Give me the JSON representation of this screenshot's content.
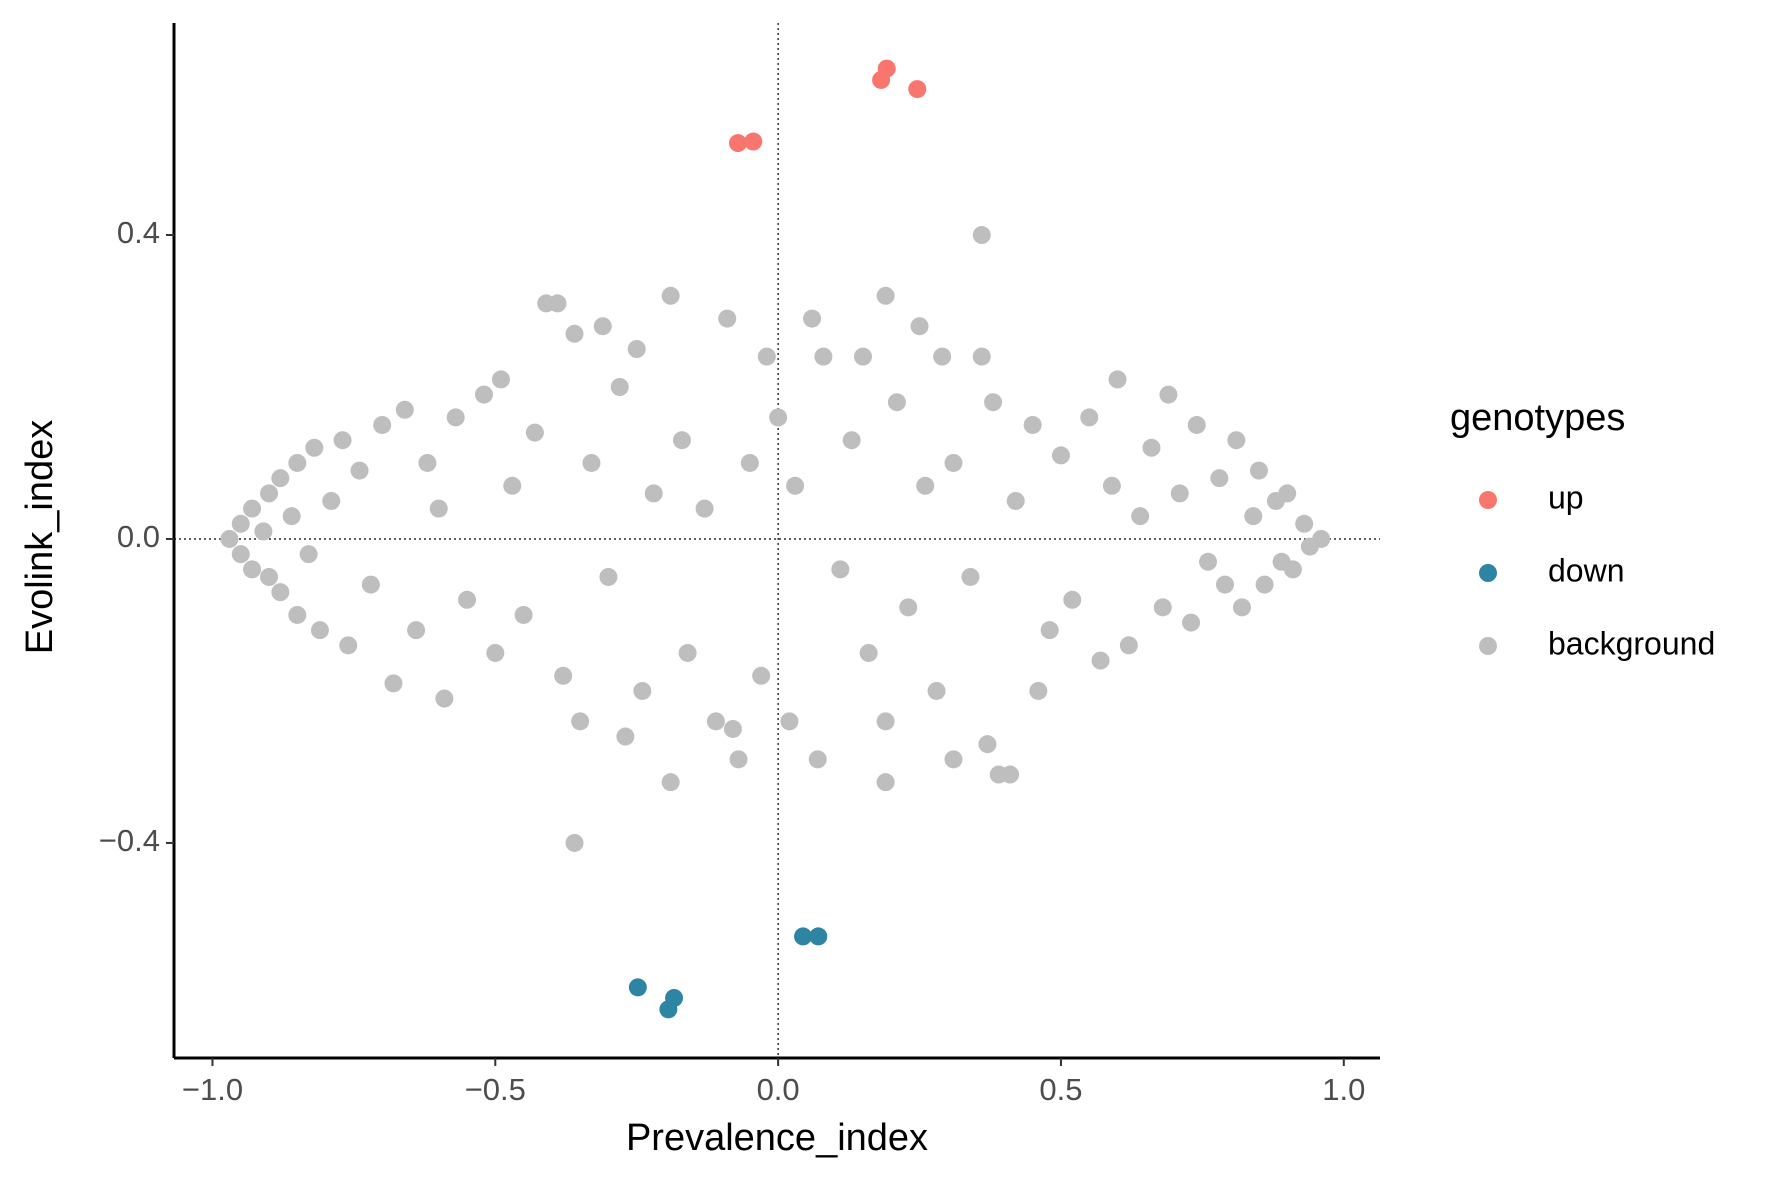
{
  "chart_data": {
    "type": "scatter",
    "x_label": "Prevalence_index",
    "y_label": "Evolink_index",
    "legend_title": "genotypes",
    "legend": "right",
    "xlim": [
      -1.068,
      1.064
    ],
    "ylim": [
      -0.683,
      0.679
    ],
    "xticks": [
      {
        "value": -1,
        "label": "−1.0"
      },
      {
        "value": -0.5,
        "label": "−0.5"
      },
      {
        "value": 0,
        "label": "0.0"
      },
      {
        "value": 0.5,
        "label": "0.5"
      },
      {
        "value": 1,
        "label": "1.0"
      }
    ],
    "yticks": [
      {
        "value": -0.4,
        "label": "−0.4"
      },
      {
        "value": 0,
        "label": "0.0"
      },
      {
        "value": 0.4,
        "label": "0.4"
      }
    ],
    "hline": 0,
    "vline": 0,
    "grid": false,
    "series": [
      {
        "name": "up",
        "color": "#F8766D",
        "x": [
          0.192,
          0.182,
          0.246,
          -0.071,
          -0.044
        ],
        "y": [
          0.619,
          0.604,
          0.592,
          0.521,
          0.523
        ]
      },
      {
        "name": "down",
        "color": "#2E84A3",
        "x": [
          0.044,
          0.071,
          -0.248,
          -0.184,
          -0.194
        ],
        "y": [
          -0.523,
          -0.523,
          -0.59,
          -0.604,
          -0.619
        ]
      },
      {
        "name": "background",
        "color": "#BEBEBE",
        "x": [
          -0.97,
          -0.95,
          -0.95,
          -0.93,
          -0.93,
          -0.91,
          -0.9,
          -0.9,
          -0.88,
          -0.88,
          -0.86,
          -0.85,
          -0.85,
          -0.83,
          -0.82,
          -0.81,
          -0.79,
          -0.77,
          -0.76,
          -0.74,
          -0.72,
          -0.7,
          -0.68,
          -0.66,
          -0.64,
          -0.62,
          -0.6,
          -0.59,
          -0.57,
          -0.55,
          -0.52,
          -0.5,
          -0.49,
          -0.47,
          -0.45,
          -0.43,
          -0.41,
          -0.39,
          -0.38,
          -0.36,
          -0.35,
          -0.36,
          -0.33,
          -0.31,
          -0.3,
          -0.28,
          -0.27,
          -0.25,
          -0.24,
          -0.22,
          -0.19,
          -0.19,
          -0.17,
          -0.16,
          -0.13,
          -0.11,
          -0.09,
          -0.08,
          -0.07,
          -0.05,
          -0.03,
          -0.02,
          0,
          0.02,
          0.03,
          0.06,
          0.07,
          0.08,
          0.11,
          0.13,
          0.15,
          0.16,
          0.19,
          0.19,
          0.19,
          0.21,
          0.23,
          0.25,
          0.26,
          0.28,
          0.29,
          0.31,
          0.31,
          0.34,
          0.36,
          0.36,
          0.37,
          0.38,
          0.39,
          0.41,
          0.42,
          0.45,
          0.46,
          0.48,
          0.5,
          0.52,
          0.55,
          0.57,
          0.59,
          0.6,
          0.62,
          0.64,
          0.66,
          0.68,
          0.69,
          0.71,
          0.73,
          0.74,
          0.76,
          0.78,
          0.79,
          0.81,
          0.82,
          0.84,
          0.85,
          0.86,
          0.88,
          0.89,
          0.9,
          0.91,
          0.93,
          0.94,
          0.96
        ],
        "y": [
          0,
          0.02,
          -0.02,
          0.04,
          -0.04,
          0.01,
          0.06,
          -0.05,
          0.08,
          -0.07,
          0.03,
          0.1,
          -0.1,
          -0.02,
          0.12,
          -0.12,
          0.05,
          0.13,
          -0.14,
          0.09,
          -0.06,
          0.15,
          -0.19,
          0.17,
          -0.12,
          0.1,
          0.04,
          -0.21,
          0.16,
          -0.08,
          0.19,
          -0.15,
          0.21,
          0.07,
          -0.1,
          0.14,
          0.31,
          0.31,
          -0.18,
          0.27,
          -0.24,
          -0.4,
          0.1,
          0.28,
          -0.05,
          0.2,
          -0.26,
          0.25,
          -0.2,
          0.06,
          0.32,
          -0.32,
          0.13,
          -0.15,
          0.04,
          -0.24,
          0.29,
          -0.25,
          -0.29,
          0.1,
          -0.18,
          0.24,
          0.16,
          -0.24,
          0.07,
          0.29,
          -0.29,
          0.24,
          -0.04,
          0.13,
          0.24,
          -0.15,
          0.32,
          -0.24,
          -0.32,
          0.18,
          -0.09,
          0.28,
          0.07,
          -0.2,
          0.24,
          0.1,
          -0.29,
          -0.05,
          0.4,
          0.24,
          -0.27,
          0.18,
          -0.31,
          -0.31,
          0.05,
          0.15,
          -0.2,
          -0.12,
          0.11,
          -0.08,
          0.16,
          -0.16,
          0.07,
          0.21,
          -0.14,
          0.03,
          0.12,
          -0.09,
          0.19,
          0.06,
          -0.11,
          0.15,
          -0.03,
          0.08,
          -0.06,
          0.13,
          -0.09,
          0.03,
          0.09,
          -0.06,
          0.05,
          -0.03,
          0.06,
          -0.04,
          0.02,
          -0.01,
          0
        ]
      }
    ]
  }
}
